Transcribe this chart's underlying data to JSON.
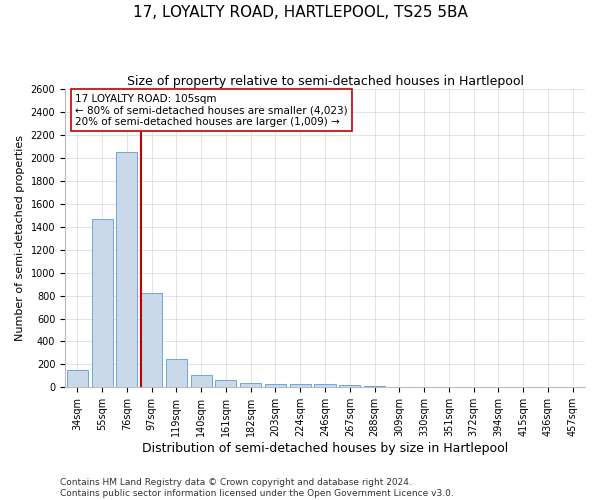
{
  "title": "17, LOYALTY ROAD, HARTLEPOOL, TS25 5BA",
  "subtitle": "Size of property relative to semi-detached houses in Hartlepool",
  "xlabel": "Distribution of semi-detached houses by size in Hartlepool",
  "ylabel": "Number of semi-detached properties",
  "categories": [
    "34sqm",
    "55sqm",
    "76sqm",
    "97sqm",
    "119sqm",
    "140sqm",
    "161sqm",
    "182sqm",
    "203sqm",
    "224sqm",
    "246sqm",
    "267sqm",
    "288sqm",
    "309sqm",
    "330sqm",
    "351sqm",
    "372sqm",
    "394sqm",
    "415sqm",
    "436sqm",
    "457sqm"
  ],
  "values": [
    150,
    1470,
    2050,
    820,
    248,
    110,
    60,
    38,
    28,
    28,
    25,
    18,
    15,
    0,
    0,
    0,
    0,
    0,
    0,
    0,
    0
  ],
  "bar_color": "#c9d9ea",
  "bar_edge_color": "#5b9bd5",
  "vline_color": "#c00000",
  "vline_x": 2.57,
  "annotation_title": "17 LOYALTY ROAD: 105sqm",
  "annotation_line1": "← 80% of semi-detached houses are smaller (4,023)",
  "annotation_line2": "20% of semi-detached houses are larger (1,009) →",
  "annotation_box_color": "#ffffff",
  "annotation_box_edgecolor": "#c00000",
  "ylim": [
    0,
    2600
  ],
  "yticks": [
    0,
    200,
    400,
    600,
    800,
    1000,
    1200,
    1400,
    1600,
    1800,
    2000,
    2200,
    2400,
    2600
  ],
  "footnote1": "Contains HM Land Registry data © Crown copyright and database right 2024.",
  "footnote2": "Contains public sector information licensed under the Open Government Licence v3.0.",
  "title_fontsize": 11,
  "subtitle_fontsize": 9,
  "ylabel_fontsize": 8,
  "xlabel_fontsize": 9,
  "tick_fontsize": 7,
  "annotation_fontsize": 7.5,
  "footnote_fontsize": 6.5,
  "background_color": "#ffffff",
  "grid_color": "#d0d8e8"
}
